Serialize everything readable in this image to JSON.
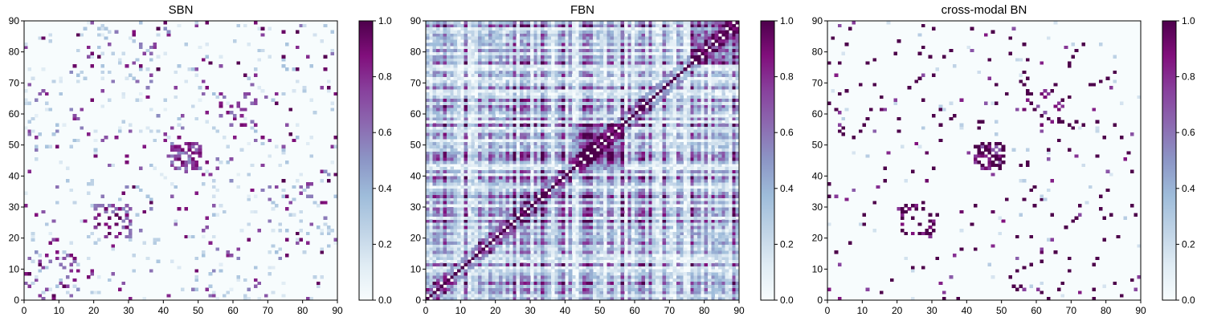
{
  "chart_data": [
    {
      "type": "heatmap",
      "title": "SBN",
      "size": 90,
      "xlim": [
        0,
        90
      ],
      "ylim": [
        0,
        90
      ],
      "x_ticks": [
        "0",
        "10",
        "20",
        "30",
        "40",
        "50",
        "60",
        "70",
        "80",
        "90"
      ],
      "y_ticks": [
        "0",
        "10",
        "20",
        "30",
        "40",
        "50",
        "60",
        "70",
        "80",
        "90"
      ],
      "value_range": [
        0,
        1
      ],
      "colorbar_ticks": [
        "0.0",
        "0.2",
        "0.4",
        "0.6",
        "0.8",
        "1.0"
      ],
      "colormap": "BuPu",
      "pattern": "sparse",
      "density": 0.028,
      "blocks": [
        [
          42,
          50,
          0.55
        ],
        [
          20,
          30,
          0.25
        ],
        [
          0,
          15,
          0.15
        ],
        [
          55,
          67,
          0.12
        ]
      ]
    },
    {
      "type": "heatmap",
      "title": "FBN",
      "size": 90,
      "xlim": [
        0,
        90
      ],
      "ylim": [
        0,
        90
      ],
      "x_ticks": [
        "0",
        "10",
        "20",
        "30",
        "40",
        "50",
        "60",
        "70",
        "80",
        "90"
      ],
      "y_ticks": [
        "0",
        "10",
        "20",
        "30",
        "40",
        "50",
        "60",
        "70",
        "80",
        "90"
      ],
      "value_range": [
        0,
        1
      ],
      "colorbar_ticks": [
        "0.0",
        "0.2",
        "0.4",
        "0.6",
        "0.8",
        "1.0"
      ],
      "colormap": "BuPu",
      "pattern": "dense",
      "diagonal_value": 1.0
    },
    {
      "type": "heatmap",
      "title": "cross-modal BN",
      "size": 90,
      "xlim": [
        0,
        90
      ],
      "ylim": [
        0,
        90
      ],
      "x_ticks": [
        "0",
        "10",
        "20",
        "30",
        "40",
        "50",
        "60",
        "70",
        "80",
        "90"
      ],
      "y_ticks": [
        "0",
        "10",
        "20",
        "30",
        "40",
        "50",
        "60",
        "70",
        "80",
        "90"
      ],
      "value_range": [
        0,
        1
      ],
      "colorbar_ticks": [
        "0.0",
        "0.2",
        "0.4",
        "0.6",
        "0.8",
        "1.0"
      ],
      "colormap": "BuPu",
      "pattern": "binary",
      "density": 0.03,
      "blocks": [
        [
          42,
          50,
          0.6
        ],
        [
          20,
          30,
          0.2
        ],
        [
          55,
          67,
          0.15
        ]
      ]
    }
  ],
  "colors": {
    "low": "#f7fcfd",
    "mid": "#8c96c6",
    "high": "#4d004b"
  }
}
